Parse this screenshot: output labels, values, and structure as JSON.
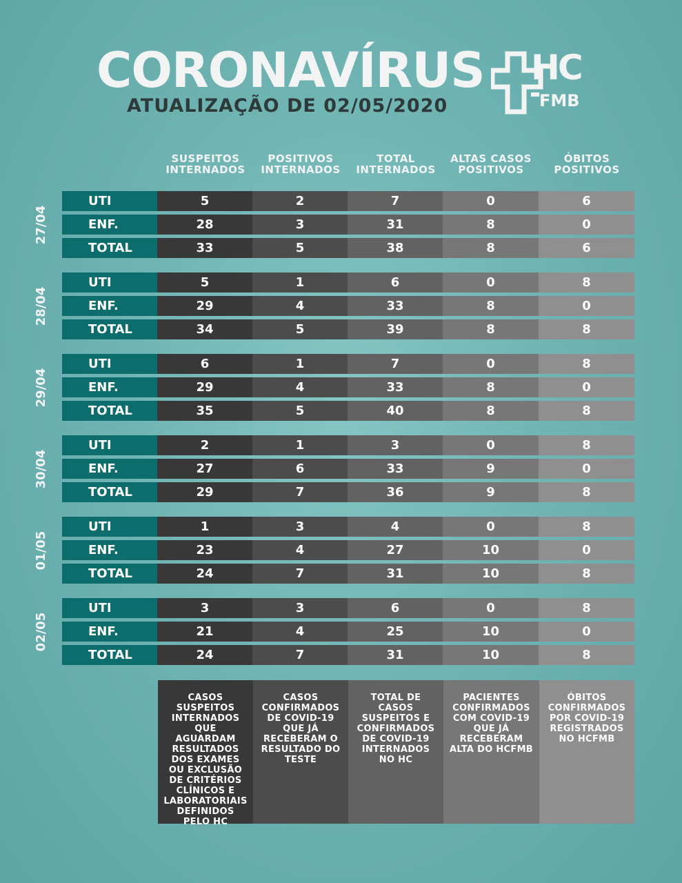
{
  "header": {
    "title": "CORONAVÍRUS",
    "subtitle": "ATUALIZAÇÃO DE 02/05/2020",
    "logo_top": "HC",
    "logo_bottom": "FMB"
  },
  "columns": [
    "SUSPEITOS INTERNADOS",
    "POSITIVOS INTERNADOS",
    "TOTAL INTERNADOS",
    "ALTAS CASOS POSITIVOS",
    "ÓBITOS POSITIVOS"
  ],
  "groups": [
    {
      "date": "27/04",
      "rows": [
        {
          "label": "UTI",
          "values": [
            "5",
            "2",
            "7",
            "0",
            "6"
          ]
        },
        {
          "label": "ENF.",
          "values": [
            "28",
            "3",
            "31",
            "8",
            "0"
          ]
        },
        {
          "label": "TOTAL",
          "values": [
            "33",
            "5",
            "38",
            "8",
            "6"
          ]
        }
      ]
    },
    {
      "date": "28/04",
      "rows": [
        {
          "label": "UTI",
          "values": [
            "5",
            "1",
            "6",
            "0",
            "8"
          ]
        },
        {
          "label": "ENF.",
          "values": [
            "29",
            "4",
            "33",
            "8",
            "0"
          ]
        },
        {
          "label": "TOTAL",
          "values": [
            "34",
            "5",
            "39",
            "8",
            "8"
          ]
        }
      ]
    },
    {
      "date": "29/04",
      "rows": [
        {
          "label": "UTI",
          "values": [
            "6",
            "1",
            "7",
            "0",
            "8"
          ]
        },
        {
          "label": "ENF.",
          "values": [
            "29",
            "4",
            "33",
            "8",
            "0"
          ]
        },
        {
          "label": "TOTAL",
          "values": [
            "35",
            "5",
            "40",
            "8",
            "8"
          ]
        }
      ]
    },
    {
      "date": "30/04",
      "rows": [
        {
          "label": "UTI",
          "values": [
            "2",
            "1",
            "3",
            "0",
            "8"
          ]
        },
        {
          "label": "ENF.",
          "values": [
            "27",
            "6",
            "33",
            "9",
            "0"
          ]
        },
        {
          "label": "TOTAL",
          "values": [
            "29",
            "7",
            "36",
            "9",
            "8"
          ]
        }
      ]
    },
    {
      "date": "01/05",
      "rows": [
        {
          "label": "UTI",
          "values": [
            "1",
            "3",
            "4",
            "0",
            "8"
          ]
        },
        {
          "label": "ENF.",
          "values": [
            "23",
            "4",
            "27",
            "10",
            "0"
          ]
        },
        {
          "label": "TOTAL",
          "values": [
            "24",
            "7",
            "31",
            "10",
            "8"
          ]
        }
      ]
    },
    {
      "date": "02/05",
      "rows": [
        {
          "label": "UTI",
          "values": [
            "3",
            "3",
            "6",
            "0",
            "8"
          ]
        },
        {
          "label": "ENF.",
          "values": [
            "21",
            "4",
            "25",
            "10",
            "0"
          ]
        },
        {
          "label": "TOTAL",
          "values": [
            "24",
            "7",
            "31",
            "10",
            "8"
          ]
        }
      ]
    }
  ],
  "descriptions": [
    "CASOS SUSPEITOS INTERNADOS QUE AGUARDAM RESULTADOS DOS EXAMES OU EXCLUSÃO DE CRITÉRIOS CLÍNICOS E LABORATORIAIS DEFINIDOS PELO HC",
    "CASOS CONFIRMADOS DE COVID-19 QUE JÁ RECEBERAM O RESULTADO DO TESTE",
    "TOTAL DE CASOS SUSPEITOS E CONFIRMADOS DE COVID-19 INTERNADOS NO HC",
    "PACIENTES CONFIRMADOS COM COVID-19 QUE JÁ RECEBERAM ALTA DO HCFMB",
    "ÓBITOS CONFIRMADOS POR COVID-19 REGISTRADOS NO HCFMB"
  ],
  "colors": {
    "background": "#6fb4b3",
    "label_cell": "#0d6d6d",
    "col1": "#383838",
    "col2": "#4c4c4c",
    "col3": "#626262",
    "col4": "#777777",
    "col5": "#8f8f8f"
  }
}
